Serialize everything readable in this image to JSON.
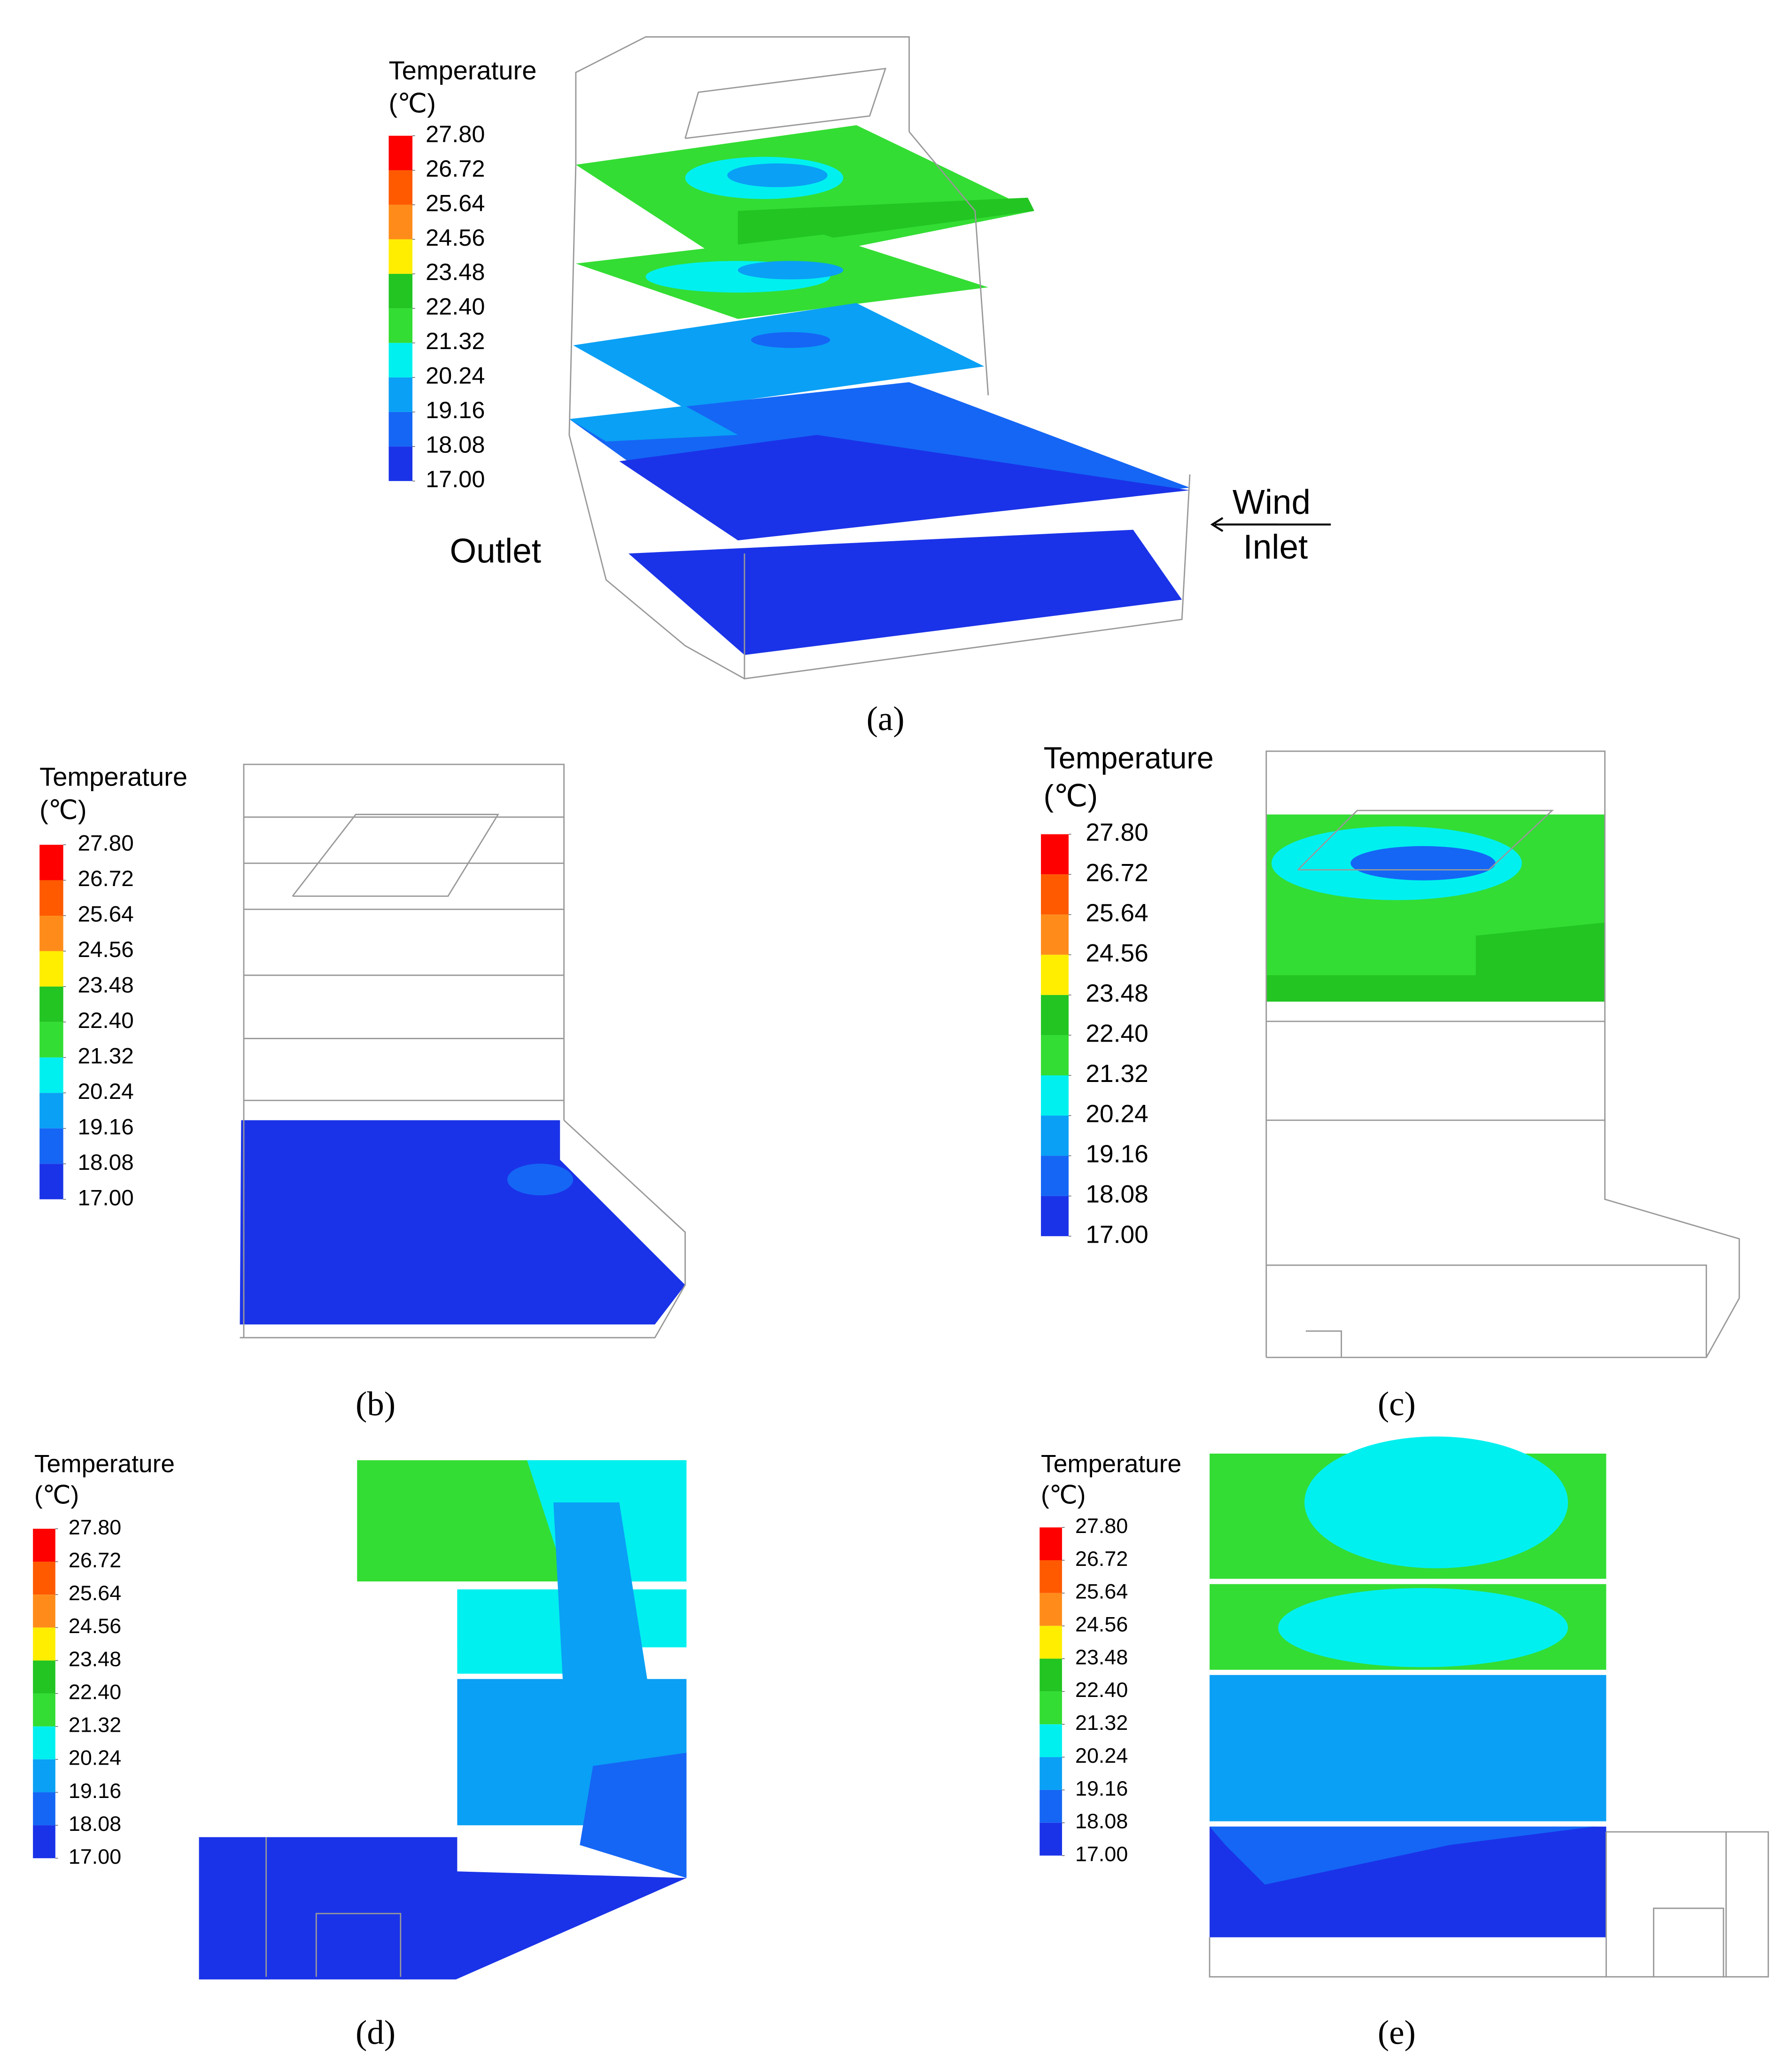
{
  "legend_scale": {
    "ticks": [
      {
        "value": 27.8,
        "label": "27.80"
      },
      {
        "value": 26.72,
        "label": "26.72"
      },
      {
        "value": 25.64,
        "label": "25.64"
      },
      {
        "value": 24.56,
        "label": "24.56"
      },
      {
        "value": 23.48,
        "label": "23.48"
      },
      {
        "value": 22.4,
        "label": "22.40"
      },
      {
        "value": 21.32,
        "label": "21.32"
      },
      {
        "value": 20.24,
        "label": "20.24"
      },
      {
        "value": 19.16,
        "label": "19.16"
      },
      {
        "value": 18.08,
        "label": "18.08"
      },
      {
        "value": 17,
        "label": "17.00"
      }
    ],
    "colors": [
      "#ff0000",
      "#ff5a00",
      "#ff8c1a",
      "#ffee00",
      "#22c522",
      "#33dd33",
      "#00f0f0",
      "#0aa0f5",
      "#1566f5",
      "#1a33e8"
    ]
  },
  "panels": [
    {
      "label": "(a)",
      "legend": {
        "title": "Temperature",
        "unit": "(℃)"
      }
    },
    {
      "label": "(b)",
      "legend": {
        "title": "Temperature",
        "unit": "(℃)"
      }
    },
    {
      "label": "(c)",
      "legend": {
        "title": "Temperature",
        "unit": "(℃)"
      }
    },
    {
      "label": "(d)",
      "legend": {
        "title": "Temperature",
        "unit": "(℃)"
      }
    },
    {
      "label": "(e)",
      "legend": {
        "title": "Temperature",
        "unit": "(℃)"
      }
    }
  ],
  "annotations": {
    "outlet": "Outlet",
    "wind": "Wind",
    "inlet": "Inlet"
  }
}
